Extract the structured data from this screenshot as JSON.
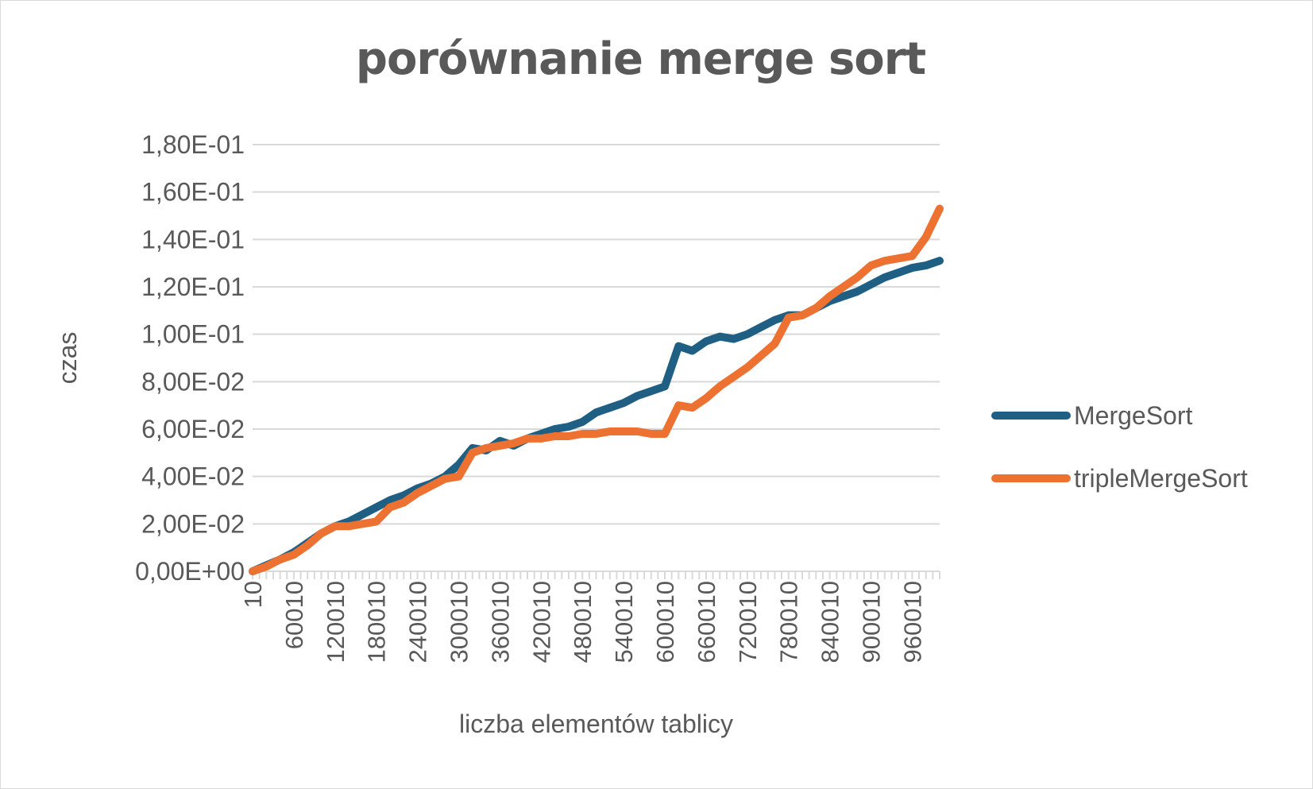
{
  "chart_data": {
    "type": "line",
    "title": "porównanie merge sort",
    "xlabel": "liczba elementów tablicy",
    "ylabel": "czas",
    "ylim": [
      0,
      0.18
    ],
    "yticks": [
      {
        "value": 0.0,
        "label": "0,00E+00"
      },
      {
        "value": 0.02,
        "label": "2,00E-02"
      },
      {
        "value": 0.04,
        "label": "4,00E-02"
      },
      {
        "value": 0.06,
        "label": "6,00E-02"
      },
      {
        "value": 0.08,
        "label": "8,00E-02"
      },
      {
        "value": 0.1,
        "label": "1,00E-01"
      },
      {
        "value": 0.12,
        "label": "1,20E-01"
      },
      {
        "value": 0.14,
        "label": "1,40E-01"
      },
      {
        "value": 0.16,
        "label": "1,60E-01"
      },
      {
        "value": 0.18,
        "label": "1,80E-01"
      }
    ],
    "xrange": [
      10,
      1000010
    ],
    "xticks": [
      10,
      60010,
      120010,
      180010,
      240010,
      300010,
      360010,
      420010,
      480010,
      540010,
      600010,
      660010,
      720010,
      780010,
      840010,
      900010,
      960010
    ],
    "grid": true,
    "legend_position": "right",
    "series": [
      {
        "name": "MergeSort",
        "color": "#1f5f84",
        "x": [
          10,
          20010,
          40010,
          60010,
          80010,
          100010,
          120010,
          140010,
          160010,
          180010,
          200010,
          220010,
          240010,
          260010,
          280010,
          300010,
          320010,
          340010,
          360010,
          380010,
          400010,
          420010,
          440010,
          460010,
          480010,
          500010,
          520010,
          540010,
          560010,
          580010,
          600010,
          620010,
          640010,
          660010,
          680010,
          700010,
          720010,
          740010,
          760010,
          780010,
          800010,
          820010,
          840010,
          860010,
          880010,
          900010,
          920010,
          940010,
          960010,
          980010,
          1000010
        ],
        "y": [
          0.0,
          0.0025,
          0.005,
          0.008,
          0.012,
          0.016,
          0.019,
          0.021,
          0.024,
          0.027,
          0.03,
          0.032,
          0.035,
          0.037,
          0.04,
          0.045,
          0.052,
          0.051,
          0.055,
          0.053,
          0.056,
          0.058,
          0.06,
          0.061,
          0.063,
          0.067,
          0.069,
          0.071,
          0.074,
          0.076,
          0.078,
          0.095,
          0.093,
          0.097,
          0.099,
          0.098,
          0.1,
          0.103,
          0.106,
          0.108,
          0.108,
          0.111,
          0.114,
          0.116,
          0.118,
          0.121,
          0.124,
          0.126,
          0.128,
          0.129,
          0.131
        ]
      },
      {
        "name": "tripleMergeSort",
        "color": "#ed7231",
        "x": [
          10,
          20010,
          40010,
          60010,
          80010,
          100010,
          120010,
          140010,
          160010,
          180010,
          200010,
          220010,
          240010,
          260010,
          280010,
          300010,
          320010,
          340010,
          360010,
          380010,
          400010,
          420010,
          440010,
          460010,
          480010,
          500010,
          520010,
          540010,
          560010,
          580010,
          600010,
          620010,
          640010,
          660010,
          680010,
          700010,
          720010,
          740010,
          760010,
          780010,
          800010,
          820010,
          840010,
          860010,
          880010,
          900010,
          920010,
          940010,
          960010,
          980010,
          1000010
        ],
        "y": [
          0.0,
          0.002,
          0.005,
          0.007,
          0.011,
          0.016,
          0.019,
          0.019,
          0.02,
          0.021,
          0.027,
          0.029,
          0.033,
          0.036,
          0.039,
          0.04,
          0.05,
          0.052,
          0.053,
          0.054,
          0.056,
          0.056,
          0.057,
          0.057,
          0.058,
          0.058,
          0.059,
          0.059,
          0.059,
          0.058,
          0.058,
          0.07,
          0.069,
          0.073,
          0.078,
          0.082,
          0.086,
          0.091,
          0.096,
          0.107,
          0.108,
          0.111,
          0.116,
          0.12,
          0.124,
          0.129,
          0.131,
          0.132,
          0.133,
          0.141,
          0.153
        ]
      }
    ]
  }
}
